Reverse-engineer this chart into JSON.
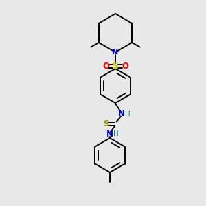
{
  "background_color": "#e8e8e8",
  "atom_colors": {
    "N": "#0000cc",
    "O": "#ff0000",
    "S_sulfonyl": "#cccc00",
    "S_thio": "#999900",
    "H": "#008080"
  },
  "bond_color": "#000000",
  "figsize": [
    3.0,
    3.0
  ],
  "dpi": 100,
  "lw": 1.4
}
